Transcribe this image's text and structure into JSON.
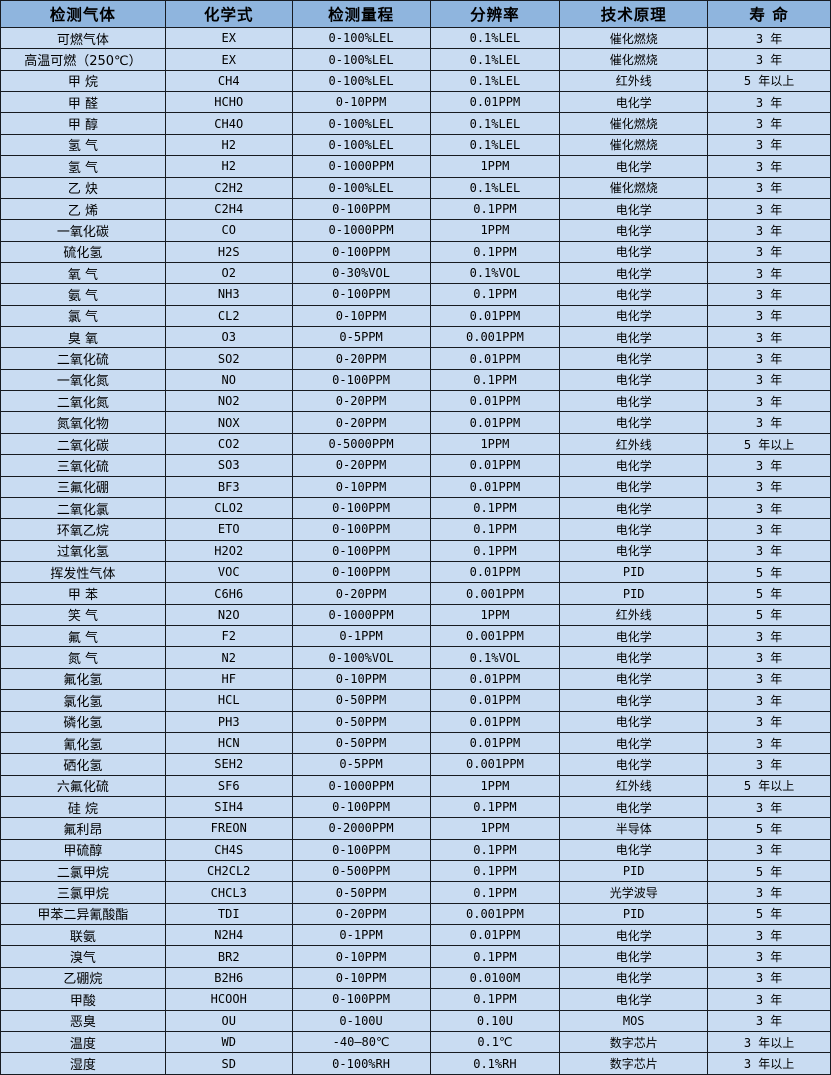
{
  "colors": {
    "header-bg": "#8fb5de",
    "row-bg": "#c9dcf2",
    "border-color": "#171b21",
    "text-color": "#000000"
  },
  "table": {
    "columns": [
      "检测气体",
      "化学式",
      "检测量程",
      "分辨率",
      "技术原理",
      "寿 命"
    ],
    "column_widths_pct": [
      19.86,
      15.28,
      16.61,
      15.64,
      17.81,
      14.8
    ],
    "rows": [
      [
        "可燃气体",
        "EX",
        "0-100%LEL",
        "0.1%LEL",
        "催化燃烧",
        "3 年"
      ],
      [
        "高温可燃（250℃）",
        "EX",
        "0-100%LEL",
        "0.1%LEL",
        "催化燃烧",
        "3 年"
      ],
      [
        "甲 烷",
        "CH4",
        "0-100%LEL",
        "0.1%LEL",
        "红外线",
        "5 年以上"
      ],
      [
        "甲 醛",
        "HCHO",
        "0-10PPM",
        "0.01PPM",
        "电化学",
        "3 年"
      ],
      [
        "甲 醇",
        "CH4O",
        "0-100%LEL",
        "0.1%LEL",
        "催化燃烧",
        "3 年"
      ],
      [
        "氢 气",
        "H2",
        "0-100%LEL",
        "0.1%LEL",
        "催化燃烧",
        "3 年"
      ],
      [
        "氢 气",
        "H2",
        "0-1000PPM",
        "1PPM",
        "电化学",
        "3 年"
      ],
      [
        "乙 炔",
        "C2H2",
        "0-100%LEL",
        "0.1%LEL",
        "催化燃烧",
        "3 年"
      ],
      [
        "乙 烯",
        "C2H4",
        "0-100PPM",
        "0.1PPM",
        "电化学",
        "3 年"
      ],
      [
        "一氧化碳",
        "CO",
        "0-1000PPM",
        "1PPM",
        "电化学",
        "3 年"
      ],
      [
        "硫化氢",
        "H2S",
        "0-100PPM",
        "0.1PPM",
        "电化学",
        "3 年"
      ],
      [
        "氧 气",
        "O2",
        "0-30%VOL",
        "0.1%VOL",
        "电化学",
        "3 年"
      ],
      [
        "氨 气",
        "NH3",
        "0-100PPM",
        "0.1PPM",
        "电化学",
        "3 年"
      ],
      [
        "氯 气",
        "CL2",
        "0-10PPM",
        "0.01PPM",
        "电化学",
        "3 年"
      ],
      [
        "臭 氧",
        "O3",
        "0-5PPM",
        "0.001PPM",
        "电化学",
        "3 年"
      ],
      [
        "二氧化硫",
        "SO2",
        "0-20PPM",
        "0.01PPM",
        "电化学",
        "3 年"
      ],
      [
        "一氧化氮",
        "NO",
        "0-100PPM",
        "0.1PPM",
        "电化学",
        "3 年"
      ],
      [
        "二氧化氮",
        "NO2",
        "0-20PPM",
        "0.01PPM",
        "电化学",
        "3 年"
      ],
      [
        "氮氧化物",
        "NOX",
        "0-20PPM",
        "0.01PPM",
        "电化学",
        "3 年"
      ],
      [
        "二氧化碳",
        "CO2",
        "0-5000PPM",
        "1PPM",
        "红外线",
        "5 年以上"
      ],
      [
        "三氧化硫",
        "SO3",
        "0-20PPM",
        "0.01PPM",
        "电化学",
        "3 年"
      ],
      [
        "三氟化硼",
        "BF3",
        "0-10PPM",
        "0.01PPM",
        "电化学",
        "3 年"
      ],
      [
        "二氧化氯",
        "CLO2",
        "0-100PPM",
        "0.1PPM",
        "电化学",
        "3 年"
      ],
      [
        "环氧乙烷",
        "ETO",
        "0-100PPM",
        "0.1PPM",
        "电化学",
        "3 年"
      ],
      [
        "过氧化氢",
        "H2O2",
        "0-100PPM",
        "0.1PPM",
        "电化学",
        "3 年"
      ],
      [
        "挥发性气体",
        "VOC",
        "0-100PPM",
        "0.01PPM",
        "PID",
        "5 年"
      ],
      [
        "甲 苯",
        "C6H6",
        "0-20PPM",
        "0.001PPM",
        "PID",
        "5 年"
      ],
      [
        "笑 气",
        "N2O",
        "0-1000PPM",
        "1PPM",
        "红外线",
        "5 年"
      ],
      [
        "氟 气",
        "F2",
        "0-1PPM",
        "0.001PPM",
        "电化学",
        "3 年"
      ],
      [
        "氮 气",
        "N2",
        "0-100%VOL",
        "0.1%VOL",
        "电化学",
        "3 年"
      ],
      [
        "氟化氢",
        "HF",
        "0-10PPM",
        "0.01PPM",
        "电化学",
        "3 年"
      ],
      [
        "氯化氢",
        "HCL",
        "0-50PPM",
        "0.01PPM",
        "电化学",
        "3 年"
      ],
      [
        "磷化氢",
        "PH3",
        "0-50PPM",
        "0.01PPM",
        "电化学",
        "3 年"
      ],
      [
        "氰化氢",
        "HCN",
        "0-50PPM",
        "0.01PPM",
        "电化学",
        "3 年"
      ],
      [
        "硒化氢",
        "SEH2",
        "0-5PPM",
        "0.001PPM",
        "电化学",
        "3 年"
      ],
      [
        "六氟化硫",
        "SF6",
        "0-1000PPM",
        "1PPM",
        "红外线",
        "5 年以上"
      ],
      [
        "硅 烷",
        "SIH4",
        "0-100PPM",
        "0.1PPM",
        "电化学",
        "3 年"
      ],
      [
        "氟利昂",
        "FREON",
        "0-2000PPM",
        "1PPM",
        "半导体",
        "5 年"
      ],
      [
        "甲硫醇",
        "CH4S",
        "0-100PPM",
        "0.1PPM",
        "电化学",
        "3 年"
      ],
      [
        "二氯甲烷",
        "CH2CL2",
        "0-500PPM",
        "0.1PPM",
        "PID",
        "5 年"
      ],
      [
        "三氯甲烷",
        "CHCL3",
        "0-50PPM",
        "0.1PPM",
        "光学波导",
        "3 年"
      ],
      [
        "甲苯二异氰酸酯",
        "TDI",
        "0-20PPM",
        "0.001PPM",
        "PID",
        "5 年"
      ],
      [
        "联氨",
        "N2H4",
        "0-1PPM",
        "0.01PPM",
        "电化学",
        "3 年"
      ],
      [
        "溴气",
        "BR2",
        "0-10PPM",
        "0.1PPM",
        "电化学",
        "3 年"
      ],
      [
        "乙硼烷",
        "B2H6",
        "0-10PPM",
        "0.0100M",
        "电化学",
        "3 年"
      ],
      [
        "甲酸",
        "HCOOH",
        "0-100PPM",
        "0.1PPM",
        "电化学",
        "3 年"
      ],
      [
        "恶臭",
        "OU",
        "0-100U",
        "0.10U",
        "MOS",
        "3 年"
      ],
      [
        "温度",
        "WD",
        "-40—80℃",
        "0.1℃",
        "数字芯片",
        "3 年以上"
      ],
      [
        "湿度",
        "SD",
        "0-100%RH",
        "0.1%RH",
        "数字芯片",
        "3 年以上"
      ]
    ]
  }
}
